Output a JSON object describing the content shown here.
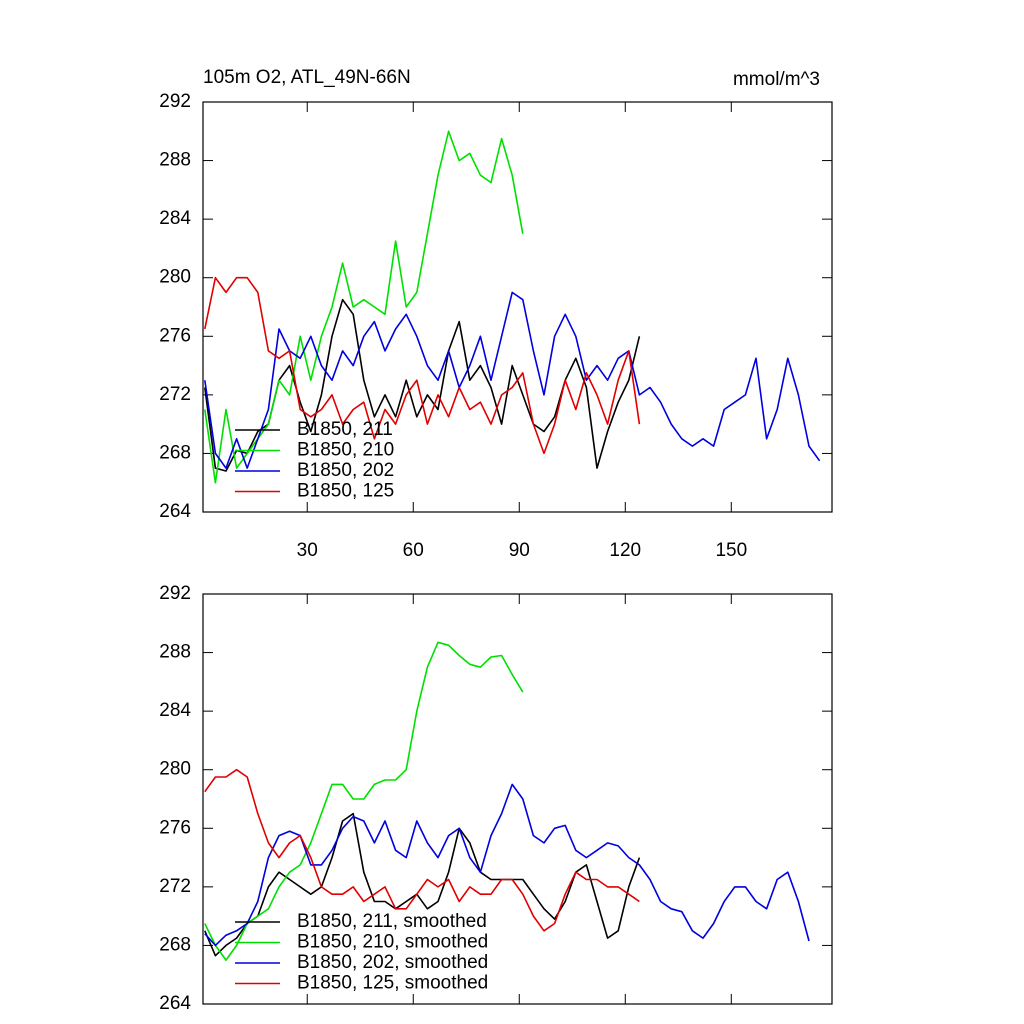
{
  "chart_data": [
    {
      "type": "line",
      "title": "105m O2, ATL_49N-66N",
      "units": "mmol/m^3",
      "x": [
        1,
        4,
        7,
        10,
        13,
        16,
        19,
        22,
        25,
        28,
        31,
        34,
        37,
        40,
        43,
        46,
        49,
        52,
        55,
        58,
        61,
        64,
        67,
        70,
        73,
        76,
        79,
        82,
        85,
        88,
        91,
        94,
        97,
        100,
        103,
        106,
        109,
        112,
        115,
        118,
        121,
        124,
        127,
        130,
        133,
        136,
        139,
        142,
        145,
        148,
        151,
        154,
        157,
        160,
        163,
        166,
        169,
        172,
        175
      ],
      "xlim": [
        0.5,
        178.5
      ],
      "xticks": [
        30,
        60,
        90,
        120,
        150
      ],
      "ylim": [
        264,
        292
      ],
      "yticks": [
        264,
        268,
        272,
        276,
        280,
        284,
        288,
        292
      ],
      "series": [
        {
          "name": "B1850, 211",
          "color": "#000000",
          "values": [
            272.5,
            267,
            266.8,
            268.2,
            268,
            269.5,
            270,
            273,
            274,
            271.5,
            269.5,
            272,
            276,
            278.5,
            277.5,
            273,
            270.5,
            272,
            270.5,
            273,
            270.5,
            272,
            271,
            275,
            277,
            273,
            274,
            272.5,
            270,
            274,
            272,
            270,
            269.5,
            270.5,
            273,
            274.5,
            272.5,
            267,
            269.5,
            271.5,
            273,
            276,
            null,
            null,
            null,
            null,
            null,
            null,
            null,
            null,
            null,
            null,
            null,
            null,
            null,
            null,
            null,
            null,
            null
          ]
        },
        {
          "name": "B1850, 210",
          "color": "#00e000",
          "values": [
            271,
            266,
            271,
            267,
            268,
            269,
            270,
            273,
            272,
            276,
            273,
            276,
            278,
            281,
            278,
            278.5,
            278,
            277.5,
            282.5,
            278,
            279,
            283,
            287,
            290,
            288,
            288.5,
            287,
            286.5,
            289.5,
            287,
            283,
            null,
            null,
            null,
            null,
            null,
            null,
            null,
            null,
            null,
            null,
            null,
            null,
            null,
            null,
            null,
            null,
            null,
            null,
            null,
            null,
            null,
            null,
            null,
            null,
            null,
            null,
            null,
            null
          ]
        },
        {
          "name": "B1850, 202",
          "color": "#0000e0",
          "values": [
            273,
            268,
            267,
            269,
            267,
            269,
            271,
            276.5,
            275,
            274.5,
            276,
            274,
            273,
            275,
            274,
            276,
            277,
            275,
            276.5,
            277.5,
            276,
            274,
            273,
            275,
            272.5,
            274,
            276,
            273,
            276,
            279,
            278.5,
            275,
            272,
            276,
            277.5,
            276,
            273,
            274,
            273,
            274.5,
            275,
            272,
            272.5,
            271.5,
            270,
            269,
            268.5,
            269,
            268.5,
            271,
            271.5,
            272,
            274.5,
            269,
            271,
            274.5,
            272,
            268.5,
            267.5
          ]
        },
        {
          "name": "B1850, 125",
          "color": "#e00000",
          "values": [
            276.5,
            280,
            279,
            280,
            280,
            279,
            275,
            274.5,
            275,
            271,
            270.5,
            271,
            272,
            270,
            271,
            271.5,
            269,
            271,
            270,
            272,
            273,
            270,
            272,
            270.5,
            272.5,
            271,
            271.5,
            270,
            272,
            272.5,
            273.5,
            270,
            268,
            270,
            273,
            271,
            273.5,
            272,
            270,
            273,
            275,
            270,
            null,
            null,
            null,
            null,
            null,
            null,
            null,
            null,
            null,
            null,
            null,
            null,
            null,
            null,
            null,
            null,
            null
          ]
        }
      ]
    },
    {
      "type": "line",
      "x": [
        1,
        4,
        7,
        10,
        13,
        16,
        19,
        22,
        25,
        28,
        31,
        34,
        37,
        40,
        43,
        46,
        49,
        52,
        55,
        58,
        61,
        64,
        67,
        70,
        73,
        76,
        79,
        82,
        85,
        88,
        91,
        94,
        97,
        100,
        103,
        106,
        109,
        112,
        115,
        118,
        121,
        124,
        127,
        130,
        133,
        136,
        139,
        142,
        145,
        148,
        151,
        154,
        157,
        160,
        163,
        166,
        169,
        172,
        175
      ],
      "xlim": [
        0.5,
        178.5
      ],
      "ylim": [
        264,
        292
      ],
      "yticks": [
        264,
        268,
        272,
        276,
        280,
        284,
        288,
        292
      ],
      "series": [
        {
          "name": "B1850, 211, smoothed",
          "color": "#000000",
          "values": [
            269,
            267.3,
            268,
            268.5,
            269.5,
            270,
            272,
            273,
            272.5,
            272,
            271.5,
            272,
            274,
            276.5,
            277,
            273,
            271,
            271,
            270.5,
            271,
            271.5,
            270.5,
            271,
            273,
            276,
            275,
            273,
            272.5,
            272.5,
            272.5,
            272.5,
            271.5,
            270.5,
            269.8,
            271,
            273,
            273.5,
            271,
            268.5,
            269,
            272,
            274,
            null,
            null,
            null,
            null,
            null,
            null,
            null,
            null,
            null,
            null,
            null,
            null,
            null,
            null,
            null,
            null,
            null
          ]
        },
        {
          "name": "B1850, 210, smoothed",
          "color": "#00e000",
          "values": [
            269.5,
            268,
            267,
            268,
            269.5,
            270,
            270.5,
            272,
            273,
            273.5,
            275,
            277,
            279,
            279,
            278,
            278,
            279,
            279.3,
            279.3,
            280,
            284,
            287,
            288.7,
            288.5,
            287.8,
            287.2,
            287,
            287.7,
            287.8,
            286.5,
            285.3,
            null,
            null,
            null,
            null,
            null,
            null,
            null,
            null,
            null,
            null,
            null,
            null,
            null,
            null,
            null,
            null,
            null,
            null,
            null,
            null,
            null,
            null,
            null,
            null,
            null,
            null,
            null,
            null
          ]
        },
        {
          "name": "B1850, 202, smoothed",
          "color": "#0000e0",
          "values": [
            268.8,
            268,
            268.7,
            269,
            269.5,
            271,
            274,
            275.5,
            275.8,
            275.5,
            273.5,
            273.5,
            274.5,
            276,
            276.8,
            276.5,
            275,
            276.5,
            274.5,
            274,
            276.5,
            275,
            274,
            275.5,
            276,
            274,
            273,
            275.5,
            277,
            279,
            278,
            275.5,
            275,
            276,
            276.2,
            274.5,
            274,
            274.5,
            275,
            274.8,
            274,
            273.5,
            272.5,
            271,
            270.5,
            270.3,
            269,
            268.5,
            269.5,
            271,
            272,
            272,
            271,
            270.5,
            272.5,
            273,
            271,
            268.3,
            null
          ]
        },
        {
          "name": "B1850, 125, smoothed",
          "color": "#e00000",
          "values": [
            278.5,
            279.5,
            279.5,
            280,
            279.5,
            277,
            275,
            274,
            275,
            275.5,
            274,
            272,
            271.5,
            271.5,
            272,
            271,
            271.5,
            272,
            270.5,
            270.5,
            271.5,
            272.5,
            272,
            272.5,
            271,
            272,
            271.5,
            271.5,
            272.5,
            272.5,
            271.5,
            270,
            269,
            269.5,
            271.5,
            273,
            272.5,
            272.5,
            272,
            272,
            271.5,
            271,
            null,
            null,
            null,
            null,
            null,
            null,
            null,
            null,
            null,
            null,
            null,
            null,
            null,
            null,
            null,
            null,
            null
          ]
        }
      ]
    }
  ]
}
